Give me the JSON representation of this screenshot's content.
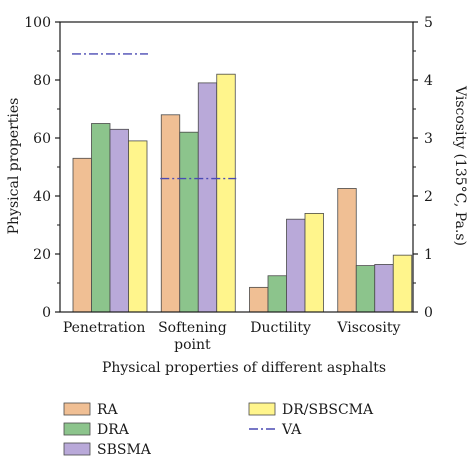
{
  "chart_data": {
    "type": "bar",
    "categories": [
      "Penetration",
      "Softening point",
      "Ductility",
      "Viscosity"
    ],
    "category_lines": [
      [
        "Penetration"
      ],
      [
        "Softening",
        "point"
      ],
      [
        "Ductility"
      ],
      [
        "Viscosity"
      ]
    ],
    "series": [
      {
        "name": "RA",
        "color": "#f0bf94",
        "values": [
          53,
          68,
          8.5,
          2.13
        ]
      },
      {
        "name": "DRA",
        "color": "#8cc48c",
        "values": [
          65,
          62,
          12.5,
          0.8
        ]
      },
      {
        "name": "SBSMA",
        "color": "#b9a9d9",
        "values": [
          63,
          79,
          32,
          0.82
        ]
      },
      {
        "name": "DR/SBSCMA",
        "color": "#fff58c",
        "values": [
          59,
          82,
          34,
          0.98
        ]
      }
    ],
    "secondary_axis_categories": [
      "Viscosity"
    ],
    "va_lines": [
      {
        "category": "Penetration",
        "value": 89,
        "axis": "left"
      },
      {
        "category": "Softening point",
        "value": 46,
        "axis": "left"
      }
    ],
    "va_name": "VA",
    "va_color": "#4a4ab4",
    "xlabel": "Physical properties of different asphalts",
    "ylabel_left": "Physical properties",
    "ylabel_right": "Viscosity (135°C, Pa.s)",
    "ylim_left": [
      0,
      100
    ],
    "yticks_left": [
      "0",
      "20",
      "40",
      "60",
      "80",
      "100"
    ],
    "ylim_right": [
      0,
      5
    ],
    "yticks_right": [
      "0",
      "1",
      "2",
      "3",
      "4",
      "5"
    ],
    "grid": false,
    "legend_position": "bottom",
    "legend_columns": [
      [
        "RA",
        "DRA",
        "SBSMA"
      ],
      [
        "DR/SBSCMA",
        "VA"
      ]
    ]
  }
}
